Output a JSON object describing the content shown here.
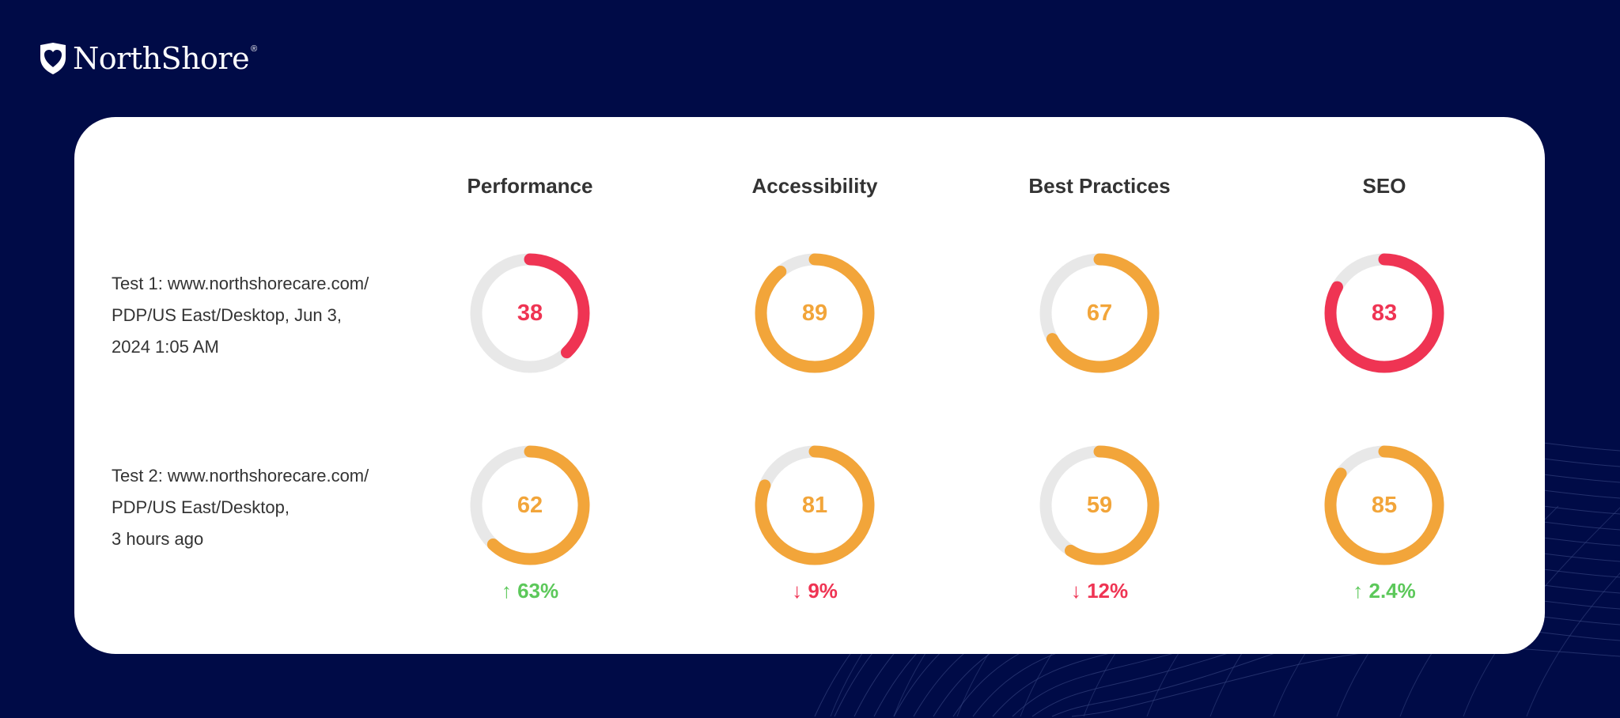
{
  "brand": {
    "name": "NorthShore",
    "registered": "®"
  },
  "colors": {
    "background": "#000b47",
    "red": "#ef3453",
    "orange": "#f2a53a",
    "track": "#e8e8e8",
    "green": "#5cc85a"
  },
  "columns": [
    "Performance",
    "Accessibility",
    "Best Practices",
    "SEO"
  ],
  "tests": [
    {
      "label_lines": [
        "Test 1: www.northshorecare.com/",
        "PDP/US East/Desktop, Jun 3,",
        "2024 1:05 AM"
      ],
      "scores": [
        {
          "value": 38,
          "color": "red"
        },
        {
          "value": 89,
          "color": "orange"
        },
        {
          "value": 67,
          "color": "orange"
        },
        {
          "value": 83,
          "color": "red"
        }
      ]
    },
    {
      "label_lines": [
        "Test 2: www.northshorecare.com/",
        "PDP/US East/Desktop,",
        "3 hours ago"
      ],
      "scores": [
        {
          "value": 62,
          "color": "orange"
        },
        {
          "value": 81,
          "color": "orange"
        },
        {
          "value": 59,
          "color": "orange"
        },
        {
          "value": 85,
          "color": "orange"
        }
      ]
    }
  ],
  "deltas": [
    {
      "arrow": "↑",
      "text": "63%",
      "color": "green"
    },
    {
      "arrow": "↓",
      "text": "9%",
      "color": "red"
    },
    {
      "arrow": "↓",
      "text": "12%",
      "color": "red"
    },
    {
      "arrow": "↑",
      "text": "2.4%",
      "color": "green"
    }
  ]
}
